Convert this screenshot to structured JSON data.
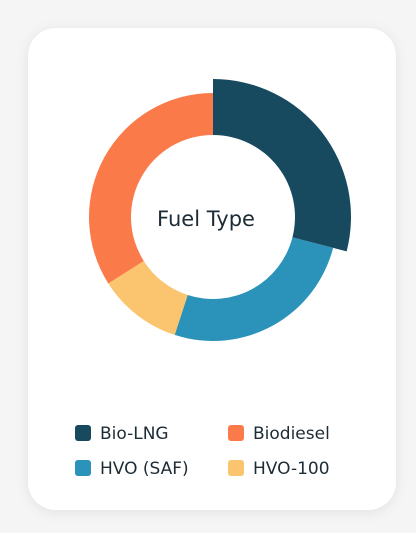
{
  "chart_data": {
    "type": "donut",
    "title": "Fuel Type",
    "categories": [
      "Bio-LNG",
      "HVO (SAF)",
      "HVO-100",
      "Biodiesel"
    ],
    "values": [
      29,
      26,
      11,
      34
    ],
    "colors": [
      "#174a5f",
      "#2b93b9",
      "#fbc56f",
      "#fb7a4a"
    ]
  }
}
